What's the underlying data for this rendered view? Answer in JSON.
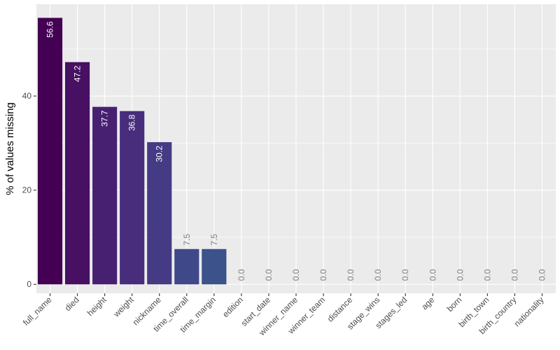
{
  "chart_data": {
    "type": "bar",
    "categories": [
      "full_name",
      "died",
      "height",
      "weight",
      "nickname",
      "time_overall",
      "time_margin",
      "edition",
      "start_date",
      "winner_name",
      "winner_team",
      "distance",
      "stage_wins",
      "stages_led",
      "age",
      "born",
      "birth_town",
      "birth_country",
      "nationality"
    ],
    "values": [
      56.6,
      47.2,
      37.7,
      36.8,
      30.2,
      7.5,
      7.5,
      0.0,
      0.0,
      0.0,
      0.0,
      0.0,
      0.0,
      0.0,
      0.0,
      0.0,
      0.0,
      0.0,
      0.0
    ],
    "value_labels": [
      "56.6",
      "47.2",
      "37.7",
      "36.8",
      "30.2",
      "7.5",
      "7.5",
      "0.0",
      "0.0",
      "0.0",
      "0.0",
      "0.0",
      "0.0",
      "0.0",
      "0.0",
      "0.0",
      "0.0",
      "0.0",
      "0.0"
    ],
    "title": "",
    "xlabel": "",
    "ylabel": "% of values missing",
    "ylim": [
      -1.9,
      59.5
    ],
    "yticks": [
      0,
      20,
      40
    ],
    "ytick_labels": [
      "0",
      "20",
      "40"
    ],
    "grid": true,
    "legend": "none",
    "colors": [
      "#440154",
      "#471063",
      "#482072",
      "#472d7b",
      "#453a84",
      "#3f4889",
      "#3b528b",
      "#355e8d",
      "#306a8e",
      "#2d718e",
      "#287d8e",
      "#24868e",
      "#21918c",
      "#1f9a8a",
      "#20a386",
      "#26ad81",
      "#35b779",
      "#43bf71",
      "#58c765"
    ],
    "panel_color": "#ebebeb",
    "grid_color": "#ffffff"
  }
}
